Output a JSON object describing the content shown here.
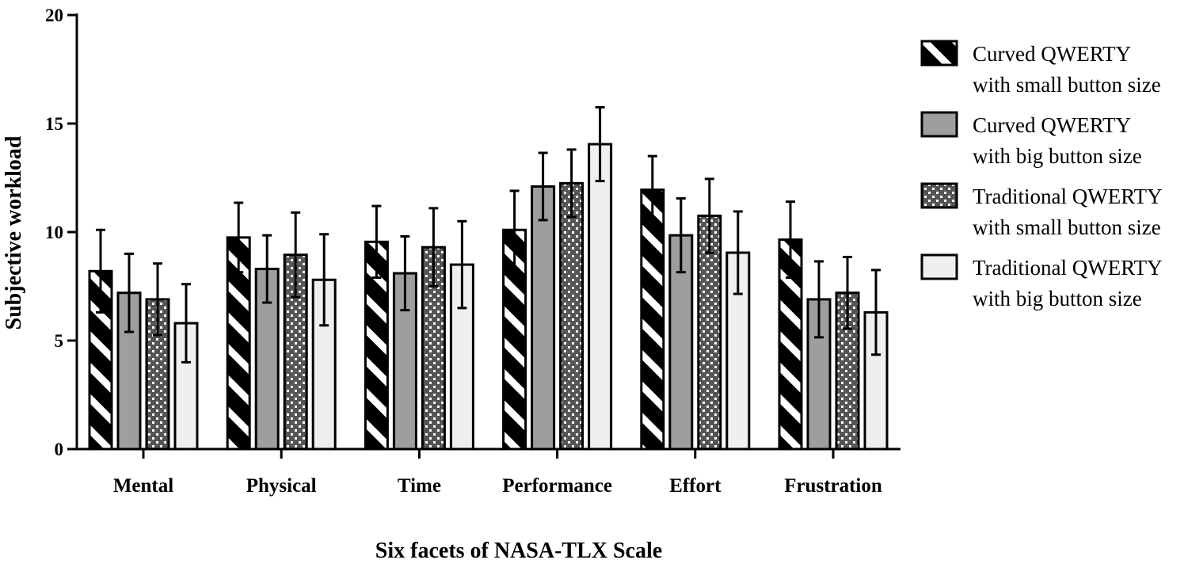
{
  "chart_data": {
    "type": "bar",
    "title": "",
    "xlabel": "Six facets of NASA-TLX Scale",
    "ylabel": "Subjective workload",
    "ylim": [
      0,
      20
    ],
    "yticks": [
      "0",
      "5",
      "10",
      "15",
      "20"
    ],
    "ytick_values": [
      0,
      5,
      10,
      15,
      20
    ],
    "categories": [
      "Mental",
      "Physical",
      "Time",
      "Performance",
      "Effort",
      "Frustration"
    ],
    "legend_position": "right",
    "series": [
      {
        "name": "Curved QWERTY with small button size",
        "legend_lines": [
          "Curved QWERTY",
          "with small button size"
        ],
        "pattern": "diagonal-stripes",
        "color": "#000000",
        "values": [
          8.2,
          9.75,
          9.55,
          10.1,
          11.95,
          9.65
        ],
        "errors": [
          1.9,
          1.6,
          1.65,
          1.8,
          1.55,
          1.75
        ]
      },
      {
        "name": "Curved QWERTY with big button size",
        "legend_lines": [
          "Curved QWERTY",
          "with big button size"
        ],
        "pattern": "solid",
        "color": "#9e9e9e",
        "values": [
          7.2,
          8.3,
          8.1,
          12.1,
          9.85,
          6.9
        ],
        "errors": [
          1.8,
          1.55,
          1.7,
          1.55,
          1.7,
          1.75
        ]
      },
      {
        "name": "Traditional QWERTY with small button size",
        "legend_lines": [
          "Traditional QWERTY",
          "with small button size"
        ],
        "pattern": "dots",
        "color": "#555555",
        "values": [
          6.9,
          8.95,
          9.3,
          12.25,
          10.75,
          7.2
        ],
        "errors": [
          1.65,
          1.95,
          1.8,
          1.55,
          1.7,
          1.65
        ]
      },
      {
        "name": "Traditional QWERTY with big button size",
        "legend_lines": [
          "Traditional QWERTY",
          "with big button size"
        ],
        "pattern": "solid",
        "color": "#efefef",
        "values": [
          5.8,
          7.8,
          8.5,
          14.05,
          9.05,
          6.3
        ],
        "errors": [
          1.8,
          2.1,
          2.0,
          1.7,
          1.9,
          1.95
        ]
      }
    ]
  }
}
